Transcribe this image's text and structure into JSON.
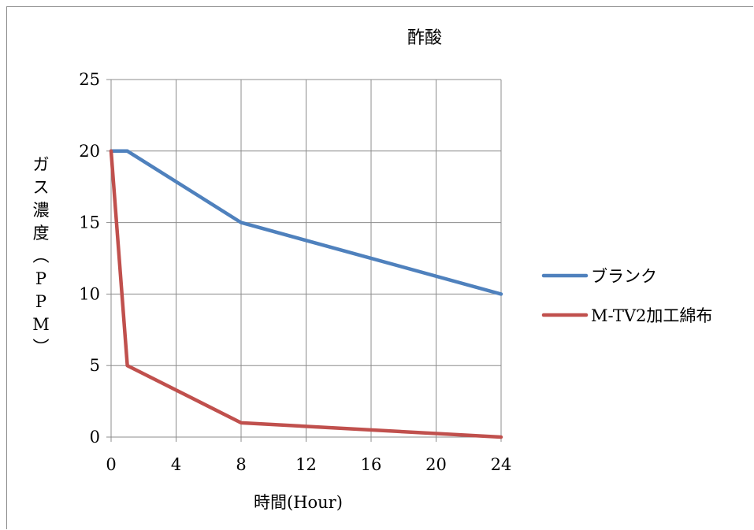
{
  "chart_data": {
    "type": "line",
    "title": "酢酸",
    "xlabel": "時間(Hour)",
    "ylabel": "ガス濃度（PPM）",
    "xlim": [
      0,
      24
    ],
    "ylim": [
      0,
      25
    ],
    "xticks": [
      0,
      4,
      8,
      12,
      16,
      20,
      24
    ],
    "yticks": [
      0,
      5,
      10,
      15,
      20,
      25
    ],
    "grid": true,
    "legend_position": "right",
    "series": [
      {
        "name": "ブランク",
        "color": "#4f81bd",
        "x": [
          0,
          1,
          8,
          24
        ],
        "y": [
          20,
          20,
          15,
          10
        ]
      },
      {
        "name": "M-TV2加工綿布",
        "color": "#c0504d",
        "x": [
          0,
          1,
          8,
          24
        ],
        "y": [
          20,
          5,
          1,
          0
        ]
      }
    ]
  },
  "ylabel_vertical": "ガ\nス\n濃\n度\n︵\nP\nP\nM\n︶"
}
